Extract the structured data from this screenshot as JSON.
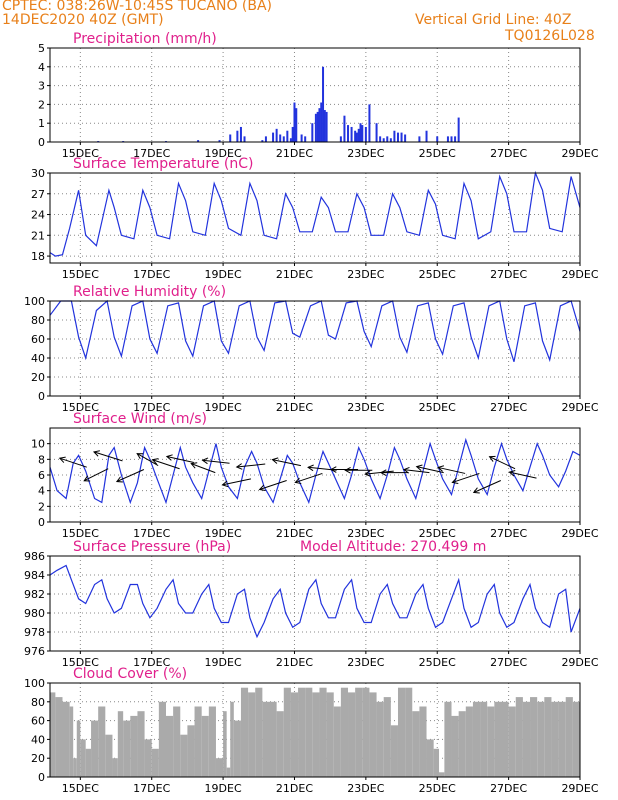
{
  "header": {
    "line1_left": "CPTEC:   038:26W-10:45S   TUCANO (BA)",
    "line2_left": "14DEC2020 40Z (GMT)",
    "line1_right": "Vertical Grid Line: 40Z",
    "line2_right": "TQ0126L028"
  },
  "colors": {
    "header": "#e8801a",
    "title": "#e0208c",
    "line": "#2233dd",
    "bar": "#2233dd",
    "cloud": "#aaaaaa"
  },
  "x_ticks": [
    "15DEC",
    "17DEC",
    "19DEC",
    "21DEC",
    "23DEC",
    "25DEC",
    "27DEC",
    "29DEC"
  ],
  "chart_data": [
    {
      "id": "precip",
      "type": "bar",
      "title": "Precipitation (mm/h)",
      "x_range": [
        14.15,
        29.0
      ],
      "ylim": [
        0,
        5
      ],
      "yticks": [
        "0",
        "1",
        "2",
        "3",
        "4",
        "5"
      ],
      "x": [
        15.5,
        16.2,
        17.4,
        18.3,
        18.9,
        19.2,
        19.4,
        19.5,
        19.6,
        20.1,
        20.2,
        20.4,
        20.5,
        20.6,
        20.7,
        20.8,
        20.9,
        20.95,
        21.0,
        21.05,
        21.2,
        21.3,
        21.5,
        21.6,
        21.65,
        21.7,
        21.75,
        21.8,
        21.85,
        21.9,
        22.3,
        22.4,
        22.5,
        22.6,
        22.7,
        22.75,
        22.8,
        22.85,
        22.9,
        23.0,
        23.1,
        23.3,
        23.4,
        23.5,
        23.6,
        23.7,
        23.8,
        23.9,
        24.0,
        24.1,
        24.5,
        24.7,
        25.0,
        25.3,
        25.4,
        25.5,
        25.6
      ],
      "values": [
        0.05,
        0.05,
        0.05,
        0.1,
        0.1,
        0.4,
        0.6,
        0.8,
        0.3,
        0.1,
        0.3,
        0.5,
        0.7,
        0.4,
        0.3,
        0.6,
        0.2,
        0.8,
        2.1,
        1.8,
        0.4,
        0.3,
        1.0,
        1.5,
        1.6,
        1.8,
        2.1,
        4.0,
        1.7,
        1.6,
        0.3,
        1.4,
        0.9,
        0.8,
        0.6,
        0.5,
        0.7,
        1.0,
        0.9,
        0.8,
        2.0,
        1.0,
        0.3,
        0.2,
        0.3,
        0.2,
        0.6,
        0.5,
        0.5,
        0.4,
        0.3,
        0.6,
        0.3,
        0.3,
        0.3,
        0.3,
        1.3
      ]
    },
    {
      "id": "temp",
      "type": "line",
      "title": "Surface Temperature (nC)",
      "x_range": [
        14.15,
        29.0
      ],
      "ylim": [
        17,
        30
      ],
      "yticks": [
        "18",
        "21",
        "24",
        "27",
        "30"
      ],
      "x": [
        14.15,
        14.3,
        14.5,
        14.7,
        14.95,
        15.15,
        15.45,
        15.8,
        15.95,
        16.15,
        16.5,
        16.75,
        16.95,
        17.15,
        17.5,
        17.75,
        17.95,
        18.15,
        18.5,
        18.75,
        18.95,
        19.15,
        19.5,
        19.75,
        19.95,
        20.15,
        20.5,
        20.75,
        20.95,
        21.15,
        21.5,
        21.75,
        21.95,
        22.15,
        22.5,
        22.75,
        22.95,
        23.15,
        23.5,
        23.75,
        23.95,
        24.15,
        24.5,
        24.75,
        24.95,
        25.15,
        25.5,
        25.75,
        25.95,
        26.15,
        26.5,
        26.75,
        26.95,
        27.15,
        27.5,
        27.75,
        27.95,
        28.15,
        28.5,
        28.75,
        29.0
      ],
      "values": [
        18.5,
        18.0,
        18.2,
        22.0,
        27.5,
        21.0,
        19.5,
        27.5,
        25.0,
        21.0,
        20.5,
        27.5,
        25.0,
        21.0,
        20.5,
        28.5,
        26.0,
        21.5,
        21.0,
        28.5,
        26.0,
        22.0,
        21.0,
        28.5,
        26.0,
        21.0,
        20.5,
        27.0,
        25.0,
        21.5,
        21.5,
        26.5,
        25.0,
        21.5,
        21.5,
        27.0,
        25.0,
        21.0,
        21.0,
        27.0,
        25.0,
        21.5,
        21.0,
        27.5,
        25.5,
        21.0,
        20.5,
        28.5,
        26.0,
        20.5,
        21.5,
        29.5,
        27.0,
        21.5,
        21.5,
        30.0,
        27.5,
        22.0,
        21.5,
        29.5,
        25.0
      ]
    },
    {
      "id": "rh",
      "type": "line",
      "title": "Relative Humidity (%)",
      "x_range": [
        14.15,
        29.0
      ],
      "ylim": [
        0,
        100
      ],
      "yticks": [
        "0",
        "20",
        "40",
        "60",
        "80",
        "100"
      ],
      "x": [
        14.15,
        14.45,
        14.75,
        14.95,
        15.15,
        15.45,
        15.75,
        15.95,
        16.15,
        16.45,
        16.75,
        16.95,
        17.15,
        17.45,
        17.75,
        17.95,
        18.15,
        18.45,
        18.75,
        18.95,
        19.15,
        19.45,
        19.75,
        19.95,
        20.15,
        20.45,
        20.75,
        20.95,
        21.15,
        21.45,
        21.75,
        21.95,
        22.15,
        22.45,
        22.75,
        22.95,
        23.15,
        23.45,
        23.75,
        23.95,
        24.15,
        24.45,
        24.75,
        24.95,
        25.15,
        25.45,
        25.75,
        25.95,
        26.15,
        26.45,
        26.75,
        26.95,
        27.15,
        27.45,
        27.75,
        27.95,
        28.15,
        28.45,
        28.75,
        29.0
      ],
      "values": [
        85,
        100,
        100,
        62,
        40,
        90,
        100,
        62,
        42,
        95,
        100,
        60,
        45,
        95,
        98,
        58,
        42,
        95,
        100,
        58,
        45,
        95,
        100,
        62,
        48,
        98,
        100,
        66,
        62,
        95,
        100,
        64,
        60,
        98,
        100,
        68,
        52,
        95,
        100,
        62,
        46,
        95,
        98,
        60,
        44,
        95,
        98,
        62,
        40,
        95,
        100,
        60,
        36,
        95,
        98,
        58,
        38,
        95,
        100,
        68
      ]
    },
    {
      "id": "wind",
      "type": "line",
      "title": "Surface Wind (m/s)",
      "x_range": [
        14.15,
        29.0
      ],
      "ylim": [
        0,
        12
      ],
      "yticks": [
        "0",
        "2",
        "4",
        "6",
        "8",
        "10"
      ],
      "x": [
        14.15,
        14.35,
        14.6,
        14.8,
        14.95,
        15.15,
        15.4,
        15.6,
        15.8,
        15.95,
        16.15,
        16.4,
        16.6,
        16.8,
        16.95,
        17.15,
        17.4,
        17.6,
        17.8,
        17.95,
        18.15,
        18.4,
        18.6,
        18.8,
        18.95,
        19.15,
        19.4,
        19.6,
        19.8,
        19.95,
        20.15,
        20.4,
        20.6,
        20.8,
        20.95,
        21.15,
        21.4,
        21.6,
        21.8,
        21.95,
        22.15,
        22.4,
        22.6,
        22.8,
        22.95,
        23.15,
        23.4,
        23.6,
        23.8,
        23.95,
        24.15,
        24.4,
        24.6,
        24.8,
        24.95,
        25.15,
        25.4,
        25.6,
        25.8,
        25.95,
        26.15,
        26.4,
        26.6,
        26.8,
        26.95,
        27.15,
        27.4,
        27.6,
        27.8,
        27.95,
        28.15,
        28.4,
        28.6,
        28.8,
        29.0
      ],
      "values": [
        7.0,
        4.0,
        3.0,
        7.5,
        8.5,
        6.5,
        3.0,
        2.5,
        8.5,
        9.5,
        6.0,
        2.5,
        5.0,
        9.5,
        8.0,
        5.5,
        2.5,
        6.0,
        9.5,
        7.0,
        5.0,
        3.0,
        6.5,
        10.0,
        7.0,
        4.5,
        3.0,
        7.0,
        9.0,
        7.5,
        4.5,
        2.5,
        5.5,
        8.5,
        7.5,
        5.0,
        2.5,
        6.0,
        9.0,
        7.5,
        5.5,
        3.0,
        6.0,
        9.5,
        8.0,
        5.5,
        3.0,
        6.0,
        9.5,
        8.0,
        5.5,
        3.0,
        6.5,
        10.0,
        8.0,
        5.5,
        3.5,
        7.0,
        10.5,
        8.5,
        5.5,
        3.5,
        7.0,
        10.0,
        8.0,
        6.0,
        4.0,
        7.0,
        10.0,
        8.5,
        6.0,
        4.5,
        6.5,
        9.0,
        8.5
      ],
      "vectors_u": [
        -0.9,
        -0.8,
        -0.95,
        -0.9,
        -0.7,
        -0.9,
        -0.9,
        -0.8,
        -0.9,
        -0.95,
        -0.95,
        -0.9,
        -0.95,
        -0.9,
        -0.95,
        -0.9,
        -0.9,
        -0.95,
        -0.9,
        -0.85,
        -0.9,
        -0.9,
        -0.9,
        -0.9,
        -0.85,
        -0.9
      ],
      "vectors_v": [
        0.3,
        -0.4,
        0.3,
        -0.4,
        0.4,
        0.3,
        0.2,
        0.3,
        0.1,
        -0.2,
        -0.1,
        -0.3,
        0.2,
        -0.3,
        0.1,
        0.0,
        0.0,
        -0.1,
        0.0,
        0.1,
        0.2,
        0.2,
        -0.3,
        -0.4,
        0.4,
        0.2
      ],
      "vectors_x": [
        14.2,
        14.8,
        15.2,
        15.8,
        16.2,
        16.8,
        17.2,
        17.8,
        18.2,
        18.8,
        19.2,
        19.8,
        20.2,
        20.8,
        21.2,
        21.8,
        22.2,
        22.8,
        23.2,
        23.8,
        24.2,
        24.8,
        25.2,
        25.8,
        26.2,
        26.8
      ],
      "vectors_y": [
        7.0,
        6.8,
        7.8,
        6.7,
        7.2,
        6.8,
        7.6,
        6.3,
        7.5,
        5.5,
        7.4,
        5.3,
        7.2,
        6.2,
        6.6,
        6.7,
        6.6,
        6.5,
        6.3,
        6.3,
        6.3,
        6.2,
        6.2,
        5.3,
        6.8,
        5.6
      ]
    },
    {
      "id": "pres",
      "type": "line",
      "title": "Surface Pressure (hPa)",
      "annotation": "Model Altitude: 270.499 m",
      "x_range": [
        14.15,
        29.0
      ],
      "ylim": [
        976,
        986
      ],
      "yticks": [
        "976",
        "978",
        "980",
        "982",
        "984",
        "986"
      ],
      "x": [
        14.15,
        14.35,
        14.6,
        14.75,
        14.95,
        15.15,
        15.4,
        15.6,
        15.75,
        15.95,
        16.15,
        16.4,
        16.6,
        16.75,
        16.95,
        17.15,
        17.4,
        17.6,
        17.75,
        17.95,
        18.15,
        18.4,
        18.6,
        18.75,
        18.95,
        19.15,
        19.4,
        19.6,
        19.75,
        19.95,
        20.15,
        20.4,
        20.6,
        20.75,
        20.95,
        21.15,
        21.4,
        21.6,
        21.75,
        21.95,
        22.15,
        22.4,
        22.6,
        22.75,
        22.95,
        23.15,
        23.4,
        23.6,
        23.75,
        23.95,
        24.15,
        24.4,
        24.6,
        24.75,
        24.95,
        25.15,
        25.4,
        25.6,
        25.75,
        25.95,
        26.15,
        26.4,
        26.6,
        26.75,
        26.95,
        27.15,
        27.4,
        27.6,
        27.75,
        27.95,
        28.15,
        28.4,
        28.6,
        28.75,
        29.0
      ],
      "values": [
        984.0,
        984.5,
        985.0,
        983.5,
        981.5,
        981.0,
        983.0,
        983.5,
        981.5,
        980.0,
        980.5,
        983.0,
        983.0,
        981.0,
        979.5,
        980.5,
        982.5,
        983.5,
        981.0,
        980.0,
        980.0,
        982.0,
        983.0,
        980.5,
        979.0,
        979.0,
        982.0,
        982.5,
        979.5,
        977.5,
        979.0,
        981.5,
        982.5,
        980.0,
        978.5,
        979.0,
        982.5,
        983.5,
        981.0,
        979.5,
        979.5,
        982.5,
        983.5,
        980.5,
        979.0,
        979.0,
        982.0,
        983.0,
        981.0,
        979.5,
        979.5,
        982.0,
        983.0,
        980.5,
        978.5,
        979.0,
        981.5,
        983.5,
        980.5,
        978.5,
        979.0,
        982.0,
        983.0,
        980.0,
        978.5,
        979.0,
        981.5,
        983.0,
        980.5,
        979.0,
        978.5,
        982.0,
        982.5,
        978.0,
        980.5
      ]
    },
    {
      "id": "cloud",
      "type": "area",
      "title": "Cloud Cover (%)",
      "x_range": [
        14.15,
        29.0
      ],
      "ylim": [
        0,
        100
      ],
      "yticks": [
        "0",
        "20",
        "40",
        "60",
        "80",
        "100"
      ],
      "x": [
        14.15,
        14.3,
        14.5,
        14.7,
        14.8,
        14.9,
        15.0,
        15.15,
        15.3,
        15.5,
        15.7,
        15.9,
        16.05,
        16.2,
        16.4,
        16.6,
        16.8,
        17.0,
        17.2,
        17.4,
        17.6,
        17.8,
        18.0,
        18.2,
        18.4,
        18.6,
        18.8,
        19.0,
        19.1,
        19.2,
        19.3,
        19.5,
        19.7,
        19.9,
        20.1,
        20.3,
        20.5,
        20.7,
        20.9,
        21.1,
        21.3,
        21.5,
        21.7,
        21.9,
        22.1,
        22.3,
        22.5,
        22.7,
        22.9,
        23.1,
        23.3,
        23.5,
        23.7,
        23.9,
        24.1,
        24.3,
        24.5,
        24.7,
        24.9,
        25.05,
        25.2,
        25.4,
        25.6,
        25.8,
        26.0,
        26.2,
        26.4,
        26.6,
        26.8,
        27.0,
        27.2,
        27.4,
        27.6,
        27.8,
        28.0,
        28.2,
        28.4,
        28.6,
        28.8,
        29.0
      ],
      "values": [
        90,
        85,
        80,
        75,
        20,
        60,
        40,
        30,
        60,
        75,
        45,
        20,
        70,
        60,
        65,
        70,
        40,
        30,
        80,
        65,
        75,
        45,
        55,
        75,
        65,
        75,
        20,
        70,
        10,
        80,
        60,
        95,
        90,
        95,
        80,
        80,
        70,
        95,
        90,
        95,
        95,
        90,
        95,
        90,
        75,
        95,
        90,
        95,
        95,
        90,
        80,
        85,
        55,
        95,
        95,
        70,
        75,
        40,
        30,
        5,
        80,
        65,
        70,
        75,
        80,
        80,
        75,
        80,
        80,
        75,
        85,
        80,
        85,
        80,
        85,
        80,
        80,
        85,
        80,
        80
      ]
    }
  ]
}
